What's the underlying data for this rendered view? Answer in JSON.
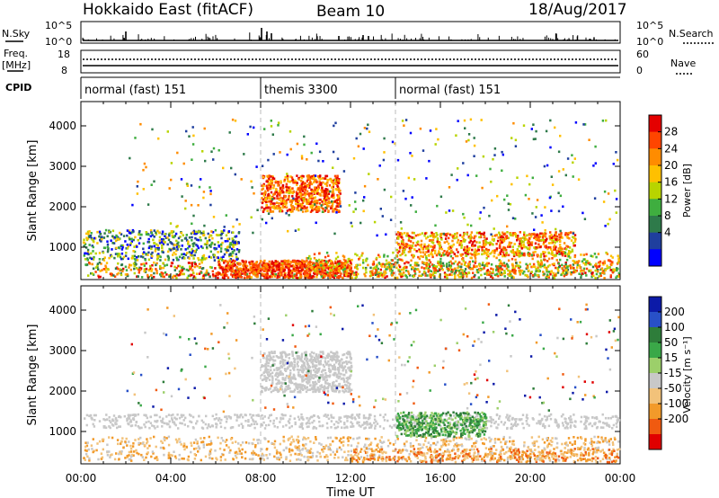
{
  "header": {
    "station": "Hokkaido East (fitACF)",
    "beam": "Beam 10",
    "date": "18/Aug/2017"
  },
  "summary_labels": {
    "nsky": "N.Sky",
    "nsearch": "N.Search",
    "nsky_ticks": [
      "10^5",
      "10^0"
    ],
    "nsearch_ticks": [
      "10^5",
      "10^0"
    ],
    "freq_line1": "Freq.",
    "freq_line2": "[MHz]",
    "freq_ticks": [
      "18",
      "8"
    ],
    "nave_ticks": [
      "60",
      "0"
    ],
    "nave": "Nave",
    "cpid": "CPID"
  },
  "cpid_segments": [
    {
      "label": "normal (fast) 151",
      "start": 0,
      "end": 8
    },
    {
      "label": "themis 3300",
      "start": 8,
      "end": 14
    },
    {
      "label": "normal (fast) 151",
      "start": 14,
      "end": 24
    }
  ],
  "chart_data": [
    {
      "type": "heatmap",
      "quantity": "power",
      "ylabel": "Slant Range [km]",
      "xlabel": "Time UT",
      "x_range": [
        0,
        24
      ],
      "ylim": [
        200,
        4600
      ],
      "yticks": [
        "1000",
        "2000",
        "3000",
        "4000"
      ],
      "xticks": [
        "00:00",
        "04:00",
        "08:00",
        "12:00",
        "16:00",
        "20:00",
        "00:00"
      ],
      "colorbar": {
        "label": "Power [dB]",
        "ticks": [
          "28",
          "24",
          "20",
          "16",
          "12",
          "8",
          "4"
        ],
        "colors": [
          "#e40000",
          "#ff4500",
          "#ff8c00",
          "#ffc000",
          "#b8d400",
          "#3fae3f",
          "#2e7a4a",
          "#1f3f9e",
          "#0000ff"
        ]
      }
    },
    {
      "type": "heatmap",
      "quantity": "velocity",
      "ylabel": "Slant Range [km]",
      "xlabel": "Time UT",
      "x_range": [
        0,
        24
      ],
      "ylim": [
        200,
        4600
      ],
      "yticks": [
        "1000",
        "2000",
        "3000",
        "4000"
      ],
      "xticks": [
        "00:00",
        "04:00",
        "08:00",
        "12:00",
        "16:00",
        "20:00",
        "00:00"
      ],
      "colorbar": {
        "label": "Velocity [m s⁻¹]",
        "ticks": [
          "200",
          "100",
          "50",
          "15",
          "-15",
          "-50",
          "-100",
          "-200"
        ],
        "colors": [
          "#0c1aa8",
          "#2850c8",
          "#2e7d3a",
          "#3aa848",
          "#9ccf6a",
          "#c8c8c8",
          "#f2c27a",
          "#f29a2a",
          "#f05a10",
          "#e00000"
        ]
      }
    }
  ]
}
